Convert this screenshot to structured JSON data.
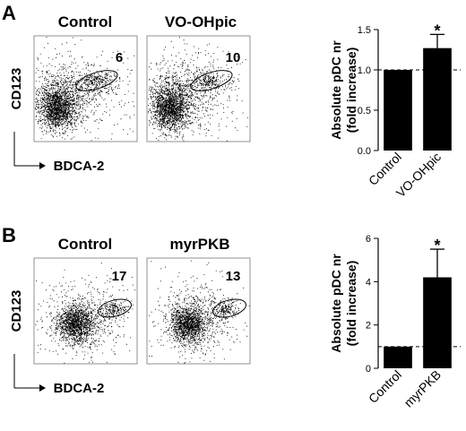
{
  "panels": [
    {
      "letter": "A",
      "flow": {
        "plots": [
          {
            "title": "Control",
            "gate_value": "6"
          },
          {
            "title": "VO-OHpic",
            "gate_value": "10"
          }
        ],
        "y_axis": "CD123",
        "x_axis": "BDCA-2"
      }
    },
    {
      "letter": "B",
      "flow": {
        "plots": [
          {
            "title": "Control",
            "gate_value": "17"
          },
          {
            "title": "myrPKB",
            "gate_value": "13"
          }
        ],
        "y_axis": "CD123",
        "x_axis": "BDCA-2"
      }
    }
  ],
  "chart_data": [
    {
      "type": "bar",
      "categories": [
        "Control",
        "VO-OHpic"
      ],
      "values": [
        1.0,
        1.27
      ],
      "error": [
        0,
        0.17
      ],
      "significance": [
        "",
        "*"
      ],
      "ylabel": "Absolute pDC nr\n(fold increase)",
      "ylim": [
        0,
        1.5
      ],
      "yticks": [
        "0.0",
        "0.5",
        "1.0",
        "1.5"
      ],
      "reference_line": 1.0,
      "bar_color": "#000000"
    },
    {
      "type": "bar",
      "categories": [
        "Control",
        "myrPKB"
      ],
      "values": [
        1.0,
        4.2
      ],
      "error": [
        0,
        1.3
      ],
      "significance": [
        "",
        "*"
      ],
      "ylabel": "Absolute pDC nr\n(fold increase)",
      "ylim": [
        0,
        6
      ],
      "yticks": [
        "0",
        "2",
        "4",
        "6"
      ],
      "reference_line": 1.0,
      "bar_color": "#000000"
    }
  ]
}
